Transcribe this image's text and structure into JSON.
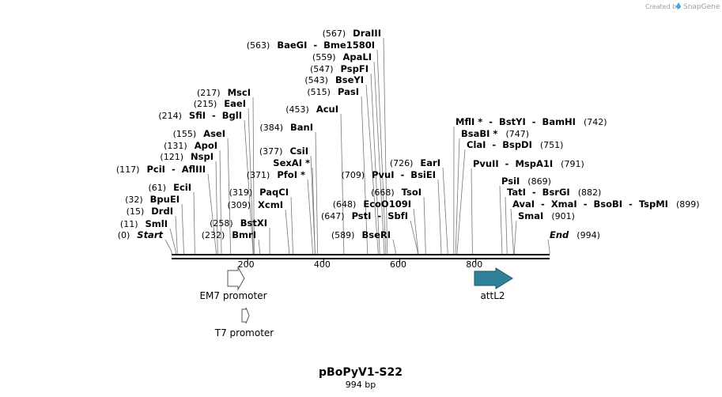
{
  "brand": {
    "text": "Created by",
    "logo": "SnapGene",
    "logo_icon": "snapgene-drop-icon"
  },
  "plasmid": {
    "name": "pBoPyV1-S22",
    "length_label": "994 bp"
  },
  "scale": {
    "length": 994,
    "ticks": [
      {
        "pos": 200,
        "label": "200"
      },
      {
        "pos": 400,
        "label": "400"
      },
      {
        "pos": 600,
        "label": "600"
      },
      {
        "pos": 800,
        "label": "800"
      }
    ]
  },
  "colors": {
    "attL2": "#31809a",
    "promoter_fill": "#ffffff",
    "line": "#000000"
  },
  "features": [
    {
      "name": "EM7 promoter",
      "start": 145,
      "end": 193,
      "direction": "forward",
      "style": "promoter"
    },
    {
      "name": "T7 promoter",
      "start": 185,
      "end": 203,
      "direction": "forward",
      "style": "promoter"
    },
    {
      "name": "attL2",
      "start": 797,
      "end": 896,
      "direction": "forward",
      "style": "attl"
    }
  ],
  "sites": [
    {
      "id": "start",
      "label": "Start",
      "pos": 0,
      "pos_label": "(0)",
      "italic": true
    },
    {
      "id": "smli",
      "label": "SmlI",
      "pos": 11,
      "pos_label": "(11)"
    },
    {
      "id": "drdi",
      "label": "DrdI",
      "pos": 15,
      "pos_label": "(15)"
    },
    {
      "id": "bpuei",
      "label": "BpuEI",
      "pos": 32,
      "pos_label": "(32)"
    },
    {
      "id": "ecii",
      "label": "EciI",
      "pos": 61,
      "pos_label": "(61)"
    },
    {
      "id": "pcii",
      "label": "PciI  -  AflIII",
      "pos": 117,
      "pos_label": "(117)"
    },
    {
      "id": "nspi",
      "label": "NspI",
      "pos": 121,
      "pos_label": "(121)"
    },
    {
      "id": "apoi",
      "label": "ApoI",
      "pos": 131,
      "pos_label": "(131)"
    },
    {
      "id": "asei",
      "label": "AseI",
      "pos": 155,
      "pos_label": "(155)"
    },
    {
      "id": "sfii",
      "label": "SfiI  -  BglI",
      "pos": 214,
      "pos_label": "(214)"
    },
    {
      "id": "eaei",
      "label": "EaeI",
      "pos": 215,
      "pos_label": "(215)"
    },
    {
      "id": "msci",
      "label": "MscI",
      "pos": 217,
      "pos_label": "(217)"
    },
    {
      "id": "bmri",
      "label": "BmrI",
      "pos": 232,
      "pos_label": "(232)"
    },
    {
      "id": "bstxi",
      "label": "BstXI",
      "pos": 258,
      "pos_label": "(258)"
    },
    {
      "id": "xcmi",
      "label": "XcmI",
      "pos": 309,
      "pos_label": "(309)"
    },
    {
      "id": "paqci",
      "label": "PaqCI",
      "pos": 319,
      "pos_label": "(319)"
    },
    {
      "id": "pfoi",
      "label": "PfoI *",
      "pos": 371,
      "pos_label": "(371)"
    },
    {
      "id": "sexai",
      "label": "SexAI *",
      "pos": 377,
      "pos_label": ""
    },
    {
      "id": "csii",
      "label": "CsiI",
      "pos": 377,
      "pos_label": "(377)"
    },
    {
      "id": "bani",
      "label": "BanI",
      "pos": 384,
      "pos_label": "(384)"
    },
    {
      "id": "acui",
      "label": "AcuI",
      "pos": 453,
      "pos_label": "(453)"
    },
    {
      "id": "pasi",
      "label": "PasI",
      "pos": 515,
      "pos_label": "(515)"
    },
    {
      "id": "bseyi",
      "label": "BseYI",
      "pos": 543,
      "pos_label": "(543)"
    },
    {
      "id": "pspfi",
      "label": "PspFI",
      "pos": 547,
      "pos_label": "(547)"
    },
    {
      "id": "apali",
      "label": "ApaLI",
      "pos": 559,
      "pos_label": "(559)"
    },
    {
      "id": "baegi",
      "label": "BaeGI  -  Bme1580I",
      "pos": 563,
      "pos_label": "(563)"
    },
    {
      "id": "draiii",
      "label": "DraIII",
      "pos": 567,
      "pos_label": "(567)"
    },
    {
      "id": "bseri",
      "label": "BseRI",
      "pos": 589,
      "pos_label": "(589)"
    },
    {
      "id": "psti",
      "label": "PstI  -  SbfI",
      "pos": 647,
      "pos_label": "(647)"
    },
    {
      "id": "eco0109i",
      "label": "EcoO109I",
      "pos": 648,
      "pos_label": "(648)"
    },
    {
      "id": "tsoi",
      "label": "TsoI",
      "pos": 668,
      "pos_label": "(668)"
    },
    {
      "id": "pvui",
      "label": "PvuI  -  BsiEI",
      "pos": 709,
      "pos_label": "(709)"
    },
    {
      "id": "eari",
      "label": "EarI",
      "pos": 726,
      "pos_label": "(726)"
    },
    {
      "id": "mfli",
      "label": "MflI *  -  BstYI  -  BamHI",
      "pos": 742,
      "pos_label": "(742)"
    },
    {
      "id": "bsabi",
      "label": "BsaBI *",
      "pos": 747,
      "pos_label": "(747)"
    },
    {
      "id": "clai",
      "label": "ClaI  -  BspDI",
      "pos": 751,
      "pos_label": "(751)"
    },
    {
      "id": "pvuii",
      "label": "PvuII  -  MspA1I",
      "pos": 791,
      "pos_label": "(791)"
    },
    {
      "id": "psii",
      "label": "PsiI",
      "pos": 869,
      "pos_label": "(869)"
    },
    {
      "id": "tati",
      "label": "TatI  -  BsrGI",
      "pos": 882,
      "pos_label": "(882)"
    },
    {
      "id": "avai",
      "label": "AvaI  -  XmaI  -  BsoBI  -  TspMI",
      "pos": 899,
      "pos_label": "(899)"
    },
    {
      "id": "smai",
      "label": "SmaI",
      "pos": 901,
      "pos_label": "(901)"
    },
    {
      "id": "end",
      "label": "End",
      "pos": 994,
      "pos_label": "(994)",
      "italic": true
    }
  ]
}
